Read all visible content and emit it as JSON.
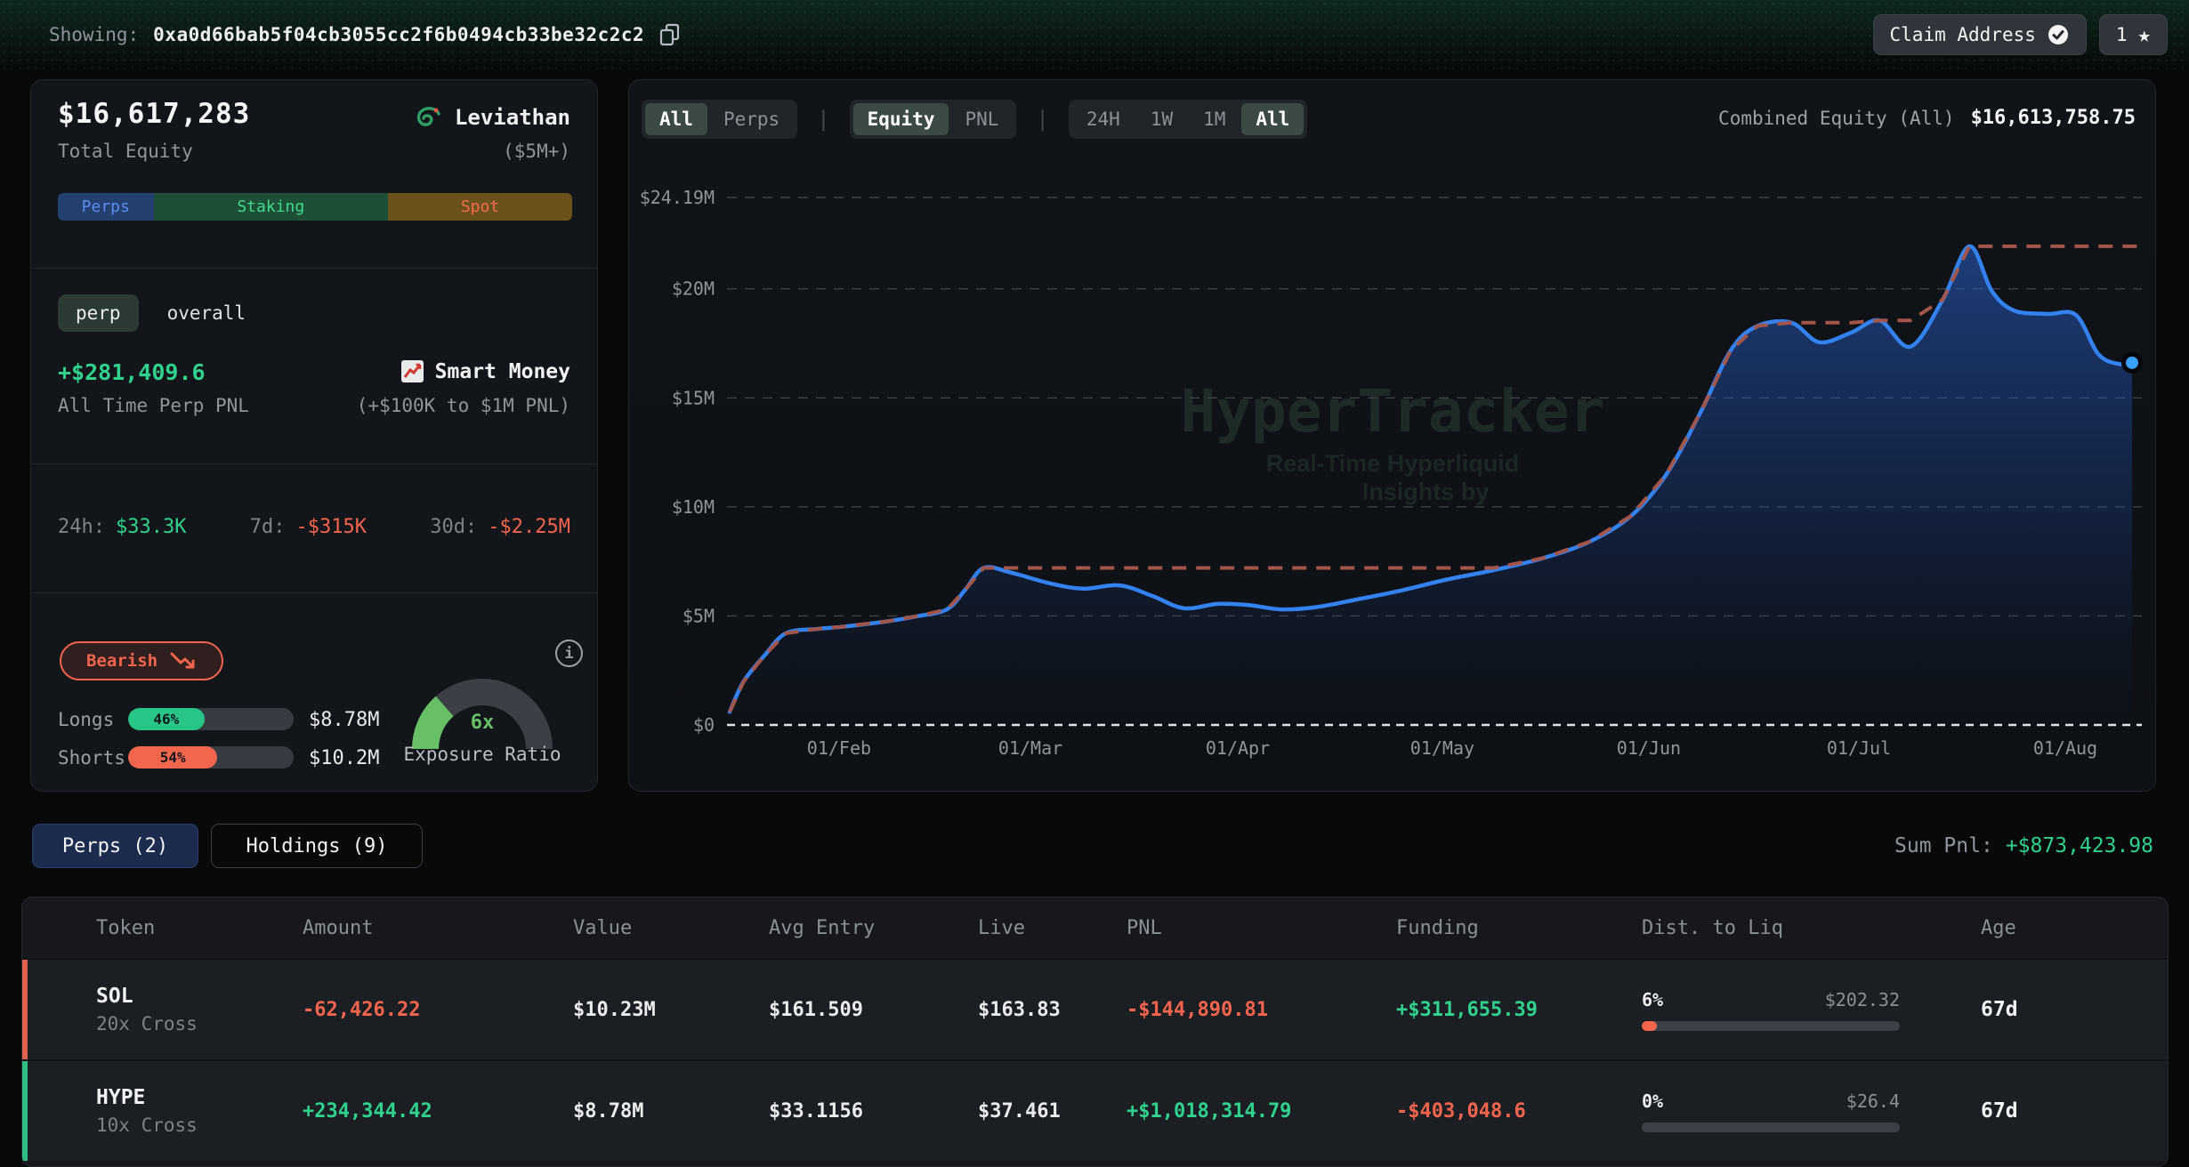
{
  "topbar": {
    "showing_label": "Showing:",
    "address": "0xa0d66bab5f04cb3055cc2f6b0494cb33be32c2c2",
    "claim_button": "Claim Address",
    "watchlist_count": "1",
    "star_icon": "★"
  },
  "profile": {
    "total_equity": "$16,617,283",
    "total_equity_label": "Total Equity",
    "name": "Leviathan",
    "tier": "($5M+)",
    "allocation": [
      {
        "label": "Perps",
        "pct": 18.6,
        "bg": "#24406f",
        "color": "#5b8df5"
      },
      {
        "label": "Staking",
        "pct": 45.6,
        "bg": "#1d4f37",
        "color": "#41d98c"
      },
      {
        "label": "Spot",
        "pct": 35.8,
        "bg": "#69521c",
        "color": "#f96b4f"
      }
    ],
    "scope_pill": "perp",
    "scope_alt": "overall",
    "all_time_pnl": "+$281,409.6",
    "all_time_pnl_color": "#31d28e",
    "all_time_pnl_label": "All Time Perp PNL",
    "smart_money": "Smart Money",
    "smart_money_sub": "(+$100K to $1M PNL)",
    "stats": [
      {
        "label": "24h:",
        "value": "$33.3K",
        "color": "#31d28e"
      },
      {
        "label": "7d:",
        "value": "-$315K",
        "color": "#f4654e"
      },
      {
        "label": "30d:",
        "value": "-$2.25M",
        "color": "#f4654e"
      }
    ],
    "sentiment": "Bearish",
    "longs": {
      "label": "Longs",
      "pct": 46,
      "pct_label": "46%",
      "value": "$8.78M",
      "fill": "#27c687"
    },
    "shorts": {
      "label": "Shorts",
      "pct": 54,
      "pct_label": "54%",
      "value": "$10.2M",
      "fill": "#f2664d"
    },
    "gauge": {
      "value": "6x",
      "label": "Exposure Ratio",
      "fraction": 0.27,
      "fill": "#67bf66"
    },
    "info_icon_glyph": "i"
  },
  "chart": {
    "scope_toggle": {
      "options": [
        "All",
        "Perps"
      ],
      "selected": "All"
    },
    "metric_toggle": {
      "options": [
        "Equity",
        "PNL"
      ],
      "selected": "Equity"
    },
    "range_toggle": {
      "options": [
        "24H",
        "1W",
        "1M",
        "All"
      ],
      "selected": "All"
    },
    "combined_label": "Combined Equity (All)",
    "combined_value": "$16,613,758.75"
  },
  "chart_data": {
    "type": "area",
    "title": "Combined Equity (All)",
    "unit": "USD millions",
    "ylim": [
      0,
      24.19
    ],
    "grid": "dashed horizontal",
    "legend": "none",
    "watermark": {
      "title": "HyperTracker",
      "sub1": "Real-Time Hyperliquid",
      "sub2": "Insights by"
    },
    "line_color": "#3481f0",
    "ath_line_color": "#a3554a",
    "y_ticks": [
      {
        "label": "$24.19M",
        "value": 24.19
      },
      {
        "label": "$20M",
        "value": 20
      },
      {
        "label": "$15M",
        "value": 15
      },
      {
        "label": "$10M",
        "value": 10
      },
      {
        "label": "$5M",
        "value": 5
      },
      {
        "label": "$0",
        "value": 0
      }
    ],
    "x_ticks": [
      {
        "label": "01/Feb",
        "f": 0.078
      },
      {
        "label": "01/Mar",
        "f": 0.2145
      },
      {
        "label": "01/Apr",
        "f": 0.3623
      },
      {
        "label": "01/May",
        "f": 0.5082
      },
      {
        "label": "01/Jun",
        "f": 0.6554
      },
      {
        "label": "01/Jul",
        "f": 0.8052
      },
      {
        "label": "01/Aug",
        "f": 0.9524
      }
    ],
    "series": [
      {
        "name": "Combined Equity",
        "points": [
          [
            0.0,
            0.6
          ],
          [
            0.01,
            2.0
          ],
          [
            0.025,
            3.2
          ],
          [
            0.04,
            4.2
          ],
          [
            0.062,
            4.4
          ],
          [
            0.08,
            4.5
          ],
          [
            0.112,
            4.75
          ],
          [
            0.135,
            5.0
          ],
          [
            0.155,
            5.3
          ],
          [
            0.168,
            6.2
          ],
          [
            0.181,
            7.2
          ],
          [
            0.2,
            7.0
          ],
          [
            0.228,
            6.5
          ],
          [
            0.252,
            6.25
          ],
          [
            0.278,
            6.4
          ],
          [
            0.302,
            5.9
          ],
          [
            0.324,
            5.35
          ],
          [
            0.348,
            5.55
          ],
          [
            0.37,
            5.5
          ],
          [
            0.393,
            5.3
          ],
          [
            0.418,
            5.4
          ],
          [
            0.447,
            5.75
          ],
          [
            0.478,
            6.15
          ],
          [
            0.51,
            6.65
          ],
          [
            0.545,
            7.1
          ],
          [
            0.58,
            7.65
          ],
          [
            0.613,
            8.4
          ],
          [
            0.643,
            9.6
          ],
          [
            0.668,
            11.5
          ],
          [
            0.692,
            14.3
          ],
          [
            0.714,
            17.2
          ],
          [
            0.733,
            18.3
          ],
          [
            0.757,
            18.45
          ],
          [
            0.777,
            17.55
          ],
          [
            0.8,
            18.0
          ],
          [
            0.82,
            18.55
          ],
          [
            0.842,
            17.35
          ],
          [
            0.865,
            19.5
          ],
          [
            0.884,
            21.95
          ],
          [
            0.9,
            19.9
          ],
          [
            0.916,
            19.0
          ],
          [
            0.94,
            18.85
          ],
          [
            0.96,
            18.8
          ],
          [
            0.976,
            17.0
          ],
          [
            0.991,
            16.55
          ],
          [
            1.0,
            16.61
          ]
        ]
      }
    ],
    "overlays": [
      "running-maximum dashed line (all-time high)",
      "white dashed zero baseline",
      "end-point dot marker"
    ]
  },
  "positions": {
    "tabs": [
      {
        "label": "Perps (2)",
        "selected": true
      },
      {
        "label": "Holdings (9)",
        "selected": false
      }
    ],
    "sum_pnl_label": "Sum Pnl:",
    "sum_pnl_value": "+$873,423.98",
    "sum_pnl_color": "#31d28e",
    "columns": [
      "Token",
      "Amount",
      "Value",
      "Avg Entry",
      "Live",
      "PNL",
      "Funding",
      "Dist. to Liq",
      "Age"
    ],
    "rows": [
      {
        "token": "SOL",
        "leverage": "20x Cross",
        "accent": "#e0614b",
        "amount": "-62,426.22",
        "amount_color": "#f4654e",
        "value": "$10.23M",
        "avg_entry": "$161.509",
        "live": "$163.83",
        "pnl": "-$144,890.81",
        "pnl_color": "#f4654e",
        "funding": "+$311,655.39",
        "funding_color": "#31d28e",
        "liq_pct": "6%",
        "liq_price": "$202.32",
        "liq_fill": 6,
        "age": "67d"
      },
      {
        "token": "HYPE",
        "leverage": "10x Cross",
        "accent": "#2ebd85",
        "amount": "+234,344.42",
        "amount_color": "#31d28e",
        "value": "$8.78M",
        "avg_entry": "$33.1156",
        "live": "$37.461",
        "pnl": "+$1,018,314.79",
        "pnl_color": "#31d28e",
        "funding": "-$403,048.6",
        "funding_color": "#f4654e",
        "liq_pct": "0%",
        "liq_price": "$26.4",
        "liq_fill": 0,
        "age": "67d"
      }
    ]
  }
}
